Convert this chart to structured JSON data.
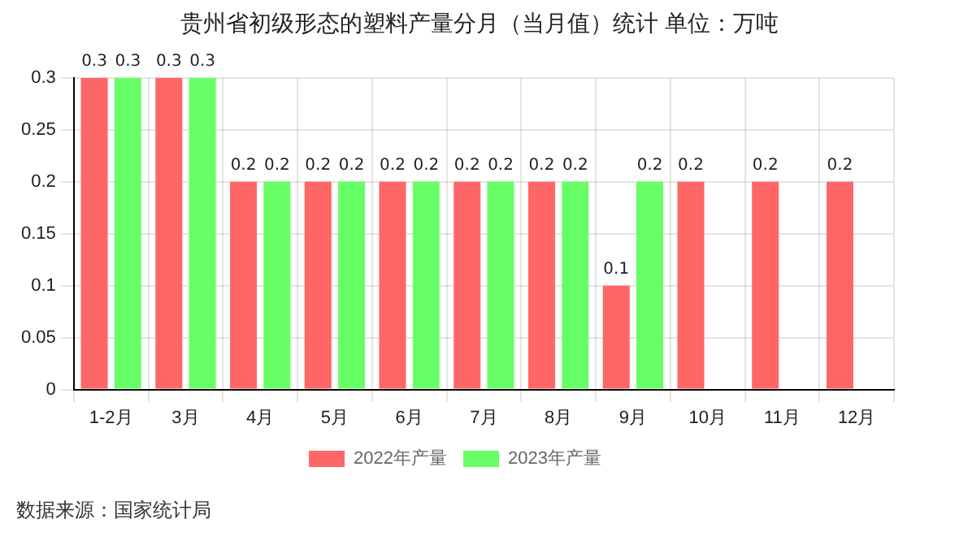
{
  "chart_data": {
    "type": "bar",
    "title": "贵州省初级形态的塑料产量分月（当月值）统计  单位：万吨",
    "categories": [
      "1-2月",
      "3月",
      "4月",
      "5月",
      "6月",
      "7月",
      "8月",
      "9月",
      "10月",
      "11月",
      "12月"
    ],
    "series": [
      {
        "name": "2022年产量",
        "color": "#ff6666",
        "values": [
          0.3,
          0.3,
          0.2,
          0.2,
          0.2,
          0.2,
          0.2,
          0.1,
          0.2,
          0.2,
          0.2
        ]
      },
      {
        "name": "2023年产量",
        "color": "#66ff66",
        "values": [
          0.3,
          0.3,
          0.2,
          0.2,
          0.2,
          0.2,
          0.2,
          0.2,
          null,
          null,
          null
        ]
      }
    ],
    "ylim": [
      0,
      0.3
    ],
    "yticks": [
      0,
      0.05,
      0.1,
      0.15,
      0.2,
      0.25,
      0.3
    ],
    "grid": true,
    "legend": "bottom",
    "data_labels": true,
    "annotations": [
      "数据来源：国家统计局"
    ]
  }
}
